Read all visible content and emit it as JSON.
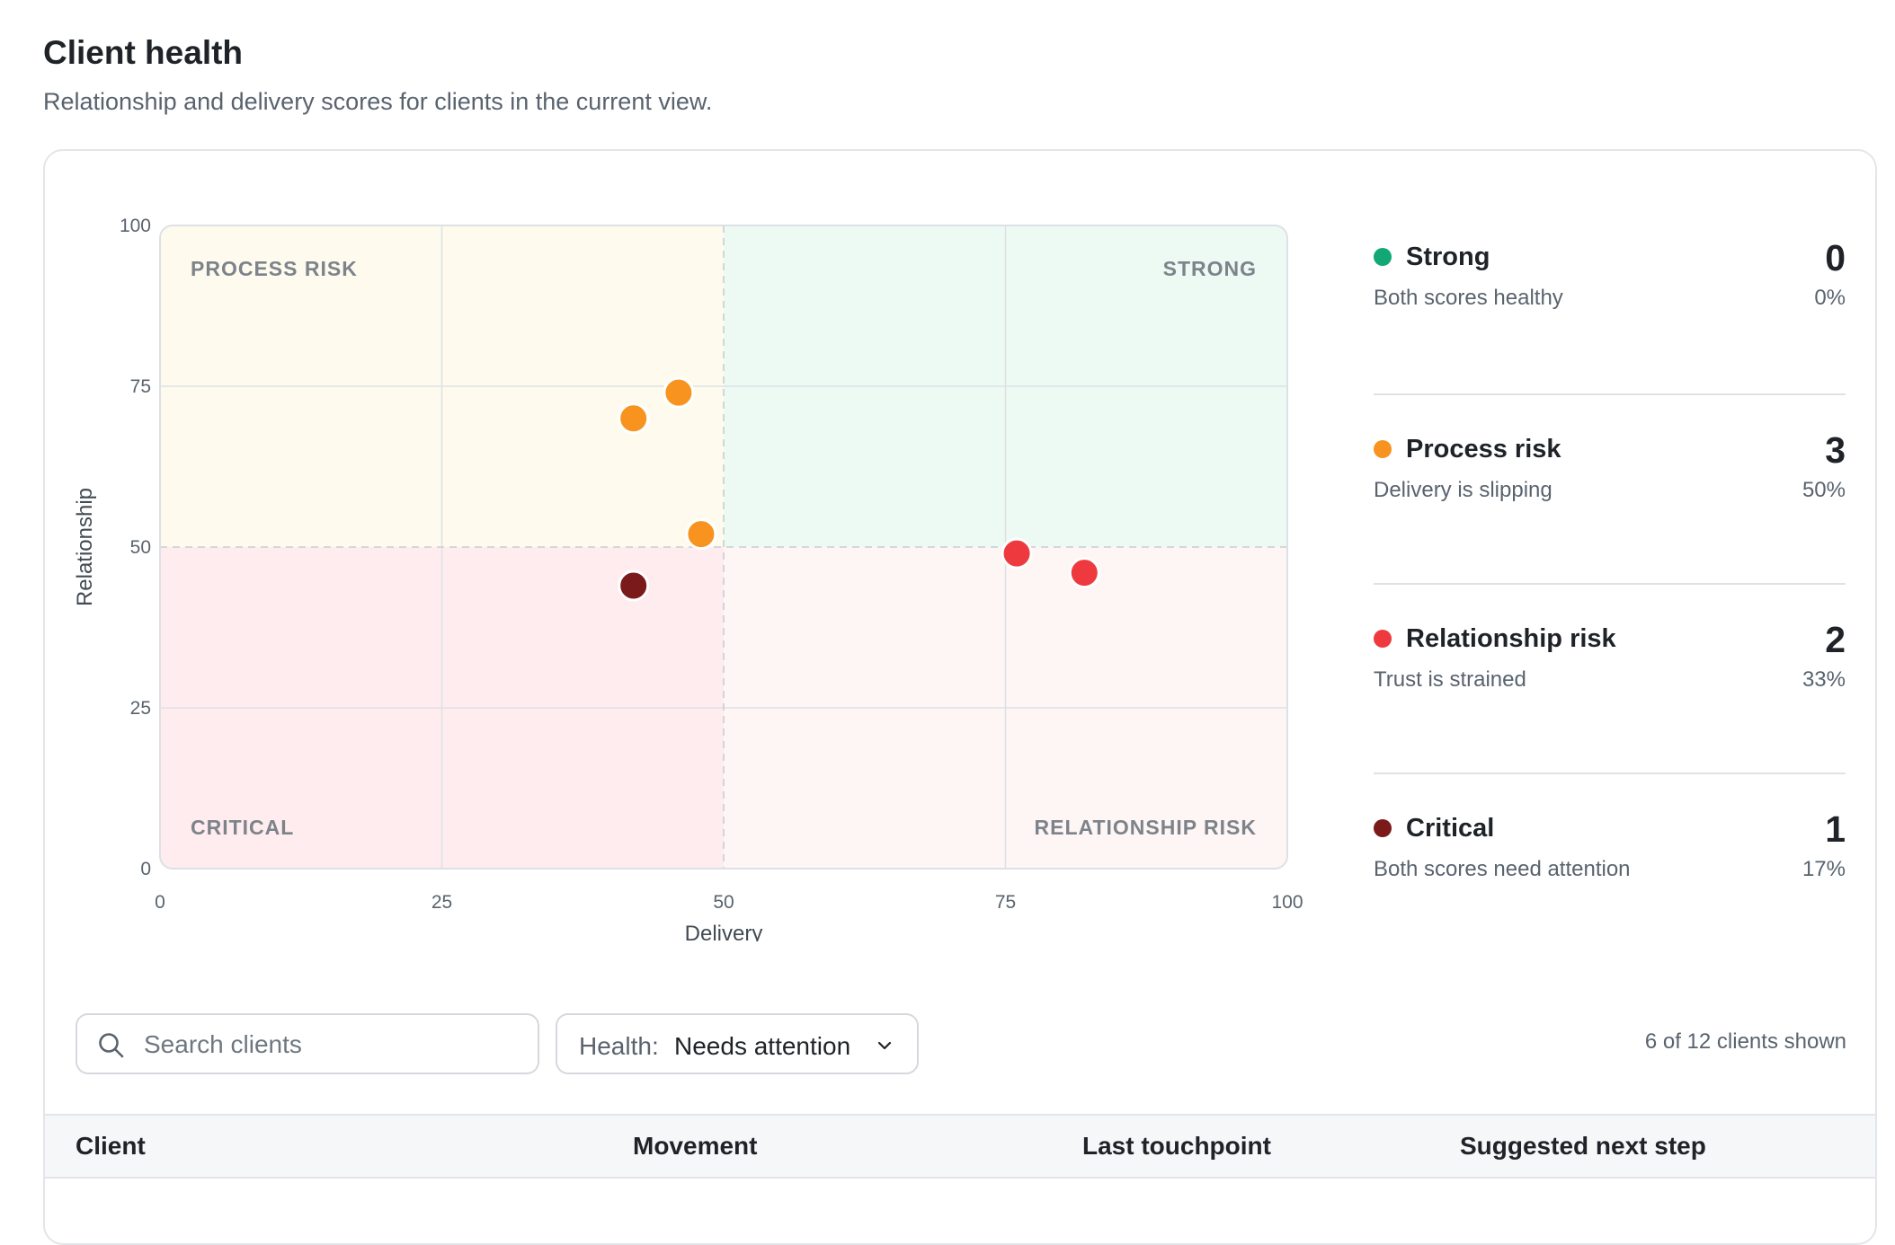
{
  "header": {
    "title": "Client health",
    "subtitle": "Relationship and delivery scores for clients in the current view."
  },
  "chart_data": {
    "type": "scatter",
    "xlabel": "Delivery",
    "ylabel": "Relationship",
    "xlim": [
      0,
      100
    ],
    "ylim": [
      0,
      100
    ],
    "x_ticks": [
      "0",
      "25",
      "50",
      "75",
      "100"
    ],
    "y_ticks": [
      "0",
      "25",
      "50",
      "75",
      "100"
    ],
    "grid": true,
    "threshold": {
      "x": 50,
      "y": 50
    },
    "quadrants": {
      "top_left": "PROCESS RISK",
      "top_right": "STRONG",
      "bottom_left": "CRITICAL",
      "bottom_right": "RELATIONSHIP RISK"
    },
    "quadrant_colors": {
      "top_left": "#fefbee",
      "top_right": "#edfaf3",
      "bottom_left": "#feecee",
      "bottom_right": "#fef5f5"
    },
    "series": [
      {
        "name": "Process risk",
        "color": "#f7931e",
        "points": [
          [
            46,
            74
          ],
          [
            42,
            70
          ],
          [
            48,
            52
          ]
        ]
      },
      {
        "name": "Relationship risk",
        "color": "#ee3a3e",
        "points": [
          [
            76,
            49
          ],
          [
            82,
            46
          ]
        ]
      },
      {
        "name": "Critical",
        "color": "#7b1a1a",
        "points": [
          [
            42,
            44
          ]
        ]
      }
    ]
  },
  "legend": [
    {
      "name": "Strong",
      "description": "Both scores healthy",
      "count": "0",
      "percent": "0%",
      "color": "#12a875"
    },
    {
      "name": "Process risk",
      "description": "Delivery is slipping",
      "count": "3",
      "percent": "50%",
      "color": "#f7931e"
    },
    {
      "name": "Relationship risk",
      "description": "Trust is strained",
      "count": "2",
      "percent": "33%",
      "color": "#ee3a3e"
    },
    {
      "name": "Critical",
      "description": "Both scores need attention",
      "count": "1",
      "percent": "17%",
      "color": "#7b1a1a"
    }
  ],
  "filters": {
    "search_placeholder": "Search clients",
    "search_icon": "search-icon",
    "health_label": "Health:",
    "health_value": "Needs attention",
    "chevron_icon": "chevron-down-icon",
    "results_count": "6 of 12 clients shown"
  },
  "table": {
    "columns": [
      "Client",
      "Movement",
      "Last touchpoint",
      "Suggested next step"
    ]
  }
}
